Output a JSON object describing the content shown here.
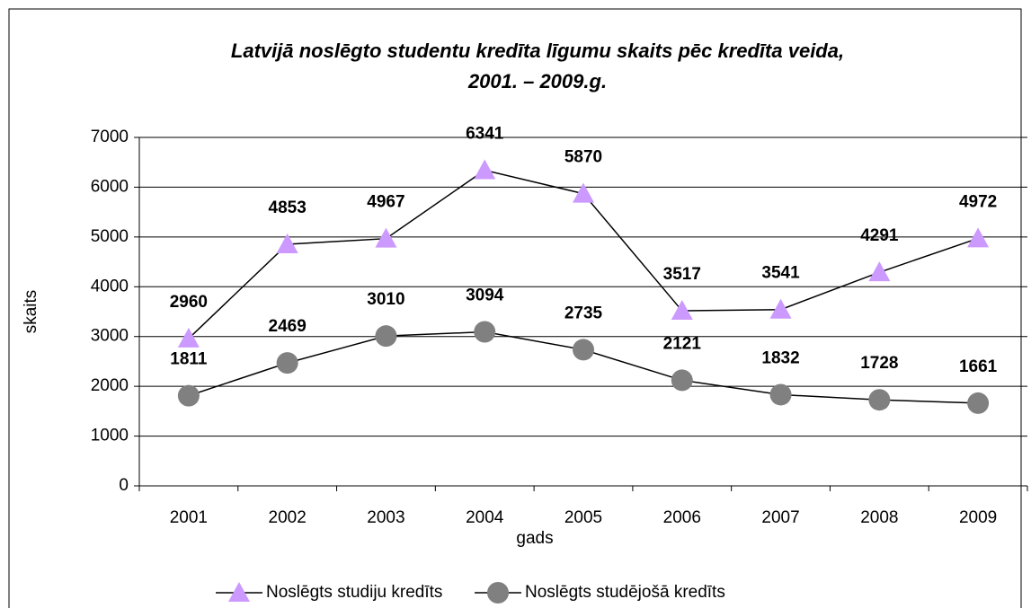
{
  "chart_data": {
    "type": "line",
    "title": [
      "Latvijā noslēgto studentu kredīta līgumu skaits pēc kredīta veida,",
      "2001. – 2009.g."
    ],
    "x_label": "gads",
    "y_label": "skaits",
    "categories": [
      "2001",
      "2002",
      "2003",
      "2004",
      "2005",
      "2006",
      "2007",
      "2008",
      "2009"
    ],
    "series": [
      {
        "name": "Noslēgts studiju kredīts",
        "color": "#cc99ff",
        "marker": "triangle",
        "values": [
          2960,
          4853,
          4967,
          6341,
          5870,
          3517,
          3541,
          4291,
          4972
        ]
      },
      {
        "name": "Noslēgts studējošā kredīts",
        "color": "#808080",
        "marker": "circle",
        "values": [
          1811,
          2469,
          3010,
          3094,
          2735,
          2121,
          1832,
          1728,
          1661
        ]
      }
    ],
    "ylim": [
      0,
      7000
    ],
    "yticks": [
      0,
      1000,
      2000,
      3000,
      4000,
      5000,
      6000,
      7000
    ],
    "grid": true,
    "legend": "bottom"
  }
}
